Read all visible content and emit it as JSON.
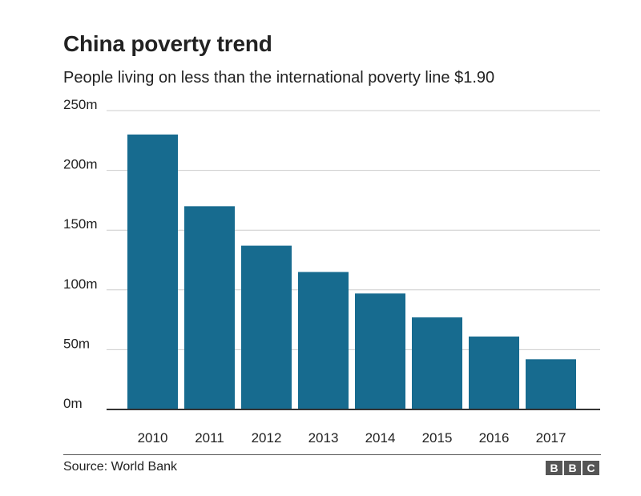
{
  "chart_data": {
    "type": "bar",
    "title": "China poverty trend",
    "subtitle": "People living on less than the international poverty line $1.90",
    "categories": [
      "2010",
      "2011",
      "2012",
      "2013",
      "2014",
      "2015",
      "2016",
      "2017"
    ],
    "values": [
      230,
      170,
      137,
      115,
      97,
      77,
      61,
      42
    ],
    "unit": "m",
    "ylim": [
      0,
      250
    ],
    "yticks": [
      0,
      50,
      100,
      150,
      200,
      250
    ],
    "ytick_labels": [
      "0m",
      "50m",
      "100m",
      "150m",
      "200m",
      "250m"
    ],
    "grid": true,
    "bar_color": "#176b8f"
  },
  "footer": {
    "source": "Source: World Bank",
    "logo_letters": [
      "B",
      "B",
      "C"
    ]
  }
}
